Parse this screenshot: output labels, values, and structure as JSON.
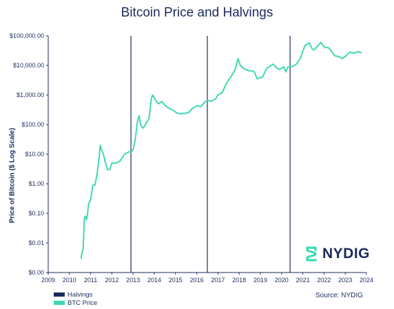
{
  "colors": {
    "halving": "#1b2a5e",
    "btc": "#3dd9b3",
    "text": "#1b2a5e",
    "axis": "#1b2a5e"
  },
  "legend": {
    "halvings_label": "Halvings",
    "btc_label": "BTC Price"
  },
  "source": "Source: NYDIG",
  "logo_text": "NYDIG",
  "chart_data": {
    "type": "line",
    "title": "Bitcoin Price and Halvings",
    "xlabel": "",
    "ylabel": "Price of Bitcoin ($ Log Scale)",
    "yscale": "log",
    "ylim": [
      0.001,
      100000
    ],
    "xlim": [
      2009,
      2024
    ],
    "x_ticks": [
      "2009",
      "2010",
      "2011",
      "2012",
      "2013",
      "2014",
      "2015",
      "2016",
      "2017",
      "2018",
      "2019",
      "2020",
      "2021",
      "2022",
      "2023",
      "2024"
    ],
    "y_ticks": [
      {
        "value": 0.001,
        "label": "$0.00"
      },
      {
        "value": 0.01,
        "label": "$0.01"
      },
      {
        "value": 0.1,
        "label": "$0.10"
      },
      {
        "value": 1,
        "label": "$1.00"
      },
      {
        "value": 10,
        "label": "$10.00"
      },
      {
        "value": 100,
        "label": "$100.00"
      },
      {
        "value": 1000,
        "label": "$1,000.00"
      },
      {
        "value": 10000,
        "label": "$10,000.00"
      },
      {
        "value": 100000,
        "label": "$100,000.00"
      }
    ],
    "grid": false,
    "legend_position": "bottom-left",
    "halvings": [
      2012.9,
      2016.5,
      2020.4
    ],
    "series": [
      {
        "name": "BTC Price",
        "x": [
          2010.55,
          2010.6,
          2010.65,
          2010.7,
          2010.75,
          2010.8,
          2010.85,
          2010.9,
          2011.0,
          2011.1,
          2011.2,
          2011.3,
          2011.4,
          2011.45,
          2011.5,
          2011.6,
          2011.7,
          2011.8,
          2011.9,
          2012.0,
          2012.2,
          2012.4,
          2012.6,
          2012.8,
          2012.9,
          2013.0,
          2013.1,
          2013.2,
          2013.28,
          2013.35,
          2013.45,
          2013.55,
          2013.65,
          2013.75,
          2013.85,
          2013.92,
          2014.0,
          2014.1,
          2014.2,
          2014.35,
          2014.5,
          2014.7,
          2014.9,
          2015.05,
          2015.2,
          2015.4,
          2015.6,
          2015.8,
          2016.0,
          2016.2,
          2016.4,
          2016.5,
          2016.7,
          2016.9,
          2017.0,
          2017.2,
          2017.4,
          2017.6,
          2017.8,
          2017.95,
          2018.05,
          2018.2,
          2018.35,
          2018.5,
          2018.7,
          2018.85,
          2018.95,
          2019.1,
          2019.3,
          2019.5,
          2019.6,
          2019.75,
          2019.9,
          2020.1,
          2020.2,
          2020.3,
          2020.5,
          2020.7,
          2020.9,
          2021.0,
          2021.1,
          2021.3,
          2021.45,
          2021.55,
          2021.7,
          2021.85,
          2021.95,
          2022.05,
          2022.2,
          2022.35,
          2022.5,
          2022.7,
          2022.85,
          2023.0,
          2023.2,
          2023.4,
          2023.6,
          2023.75
        ],
        "values": [
          0.003,
          0.005,
          0.006,
          0.07,
          0.08,
          0.06,
          0.09,
          0.2,
          0.3,
          0.9,
          0.9,
          2,
          8,
          20,
          15,
          10,
          5,
          3,
          3,
          5,
          5,
          6,
          10,
          12,
          12,
          14,
          30,
          120,
          200,
          100,
          75,
          90,
          120,
          160,
          700,
          1000,
          800,
          600,
          500,
          600,
          450,
          350,
          300,
          250,
          230,
          240,
          250,
          350,
          430,
          410,
          600,
          650,
          620,
          750,
          1000,
          1200,
          2500,
          4000,
          7000,
          17000,
          10000,
          8000,
          7000,
          6500,
          6300,
          3500,
          3800,
          4000,
          8000,
          10000,
          11000,
          8500,
          7200,
          9000,
          6000,
          8800,
          9200,
          11000,
          18000,
          30000,
          47000,
          58000,
          35000,
          34000,
          45000,
          60000,
          47000,
          40000,
          40000,
          30000,
          21000,
          20000,
          17000,
          20000,
          28000,
          26000,
          29000,
          27000
        ]
      }
    ]
  }
}
